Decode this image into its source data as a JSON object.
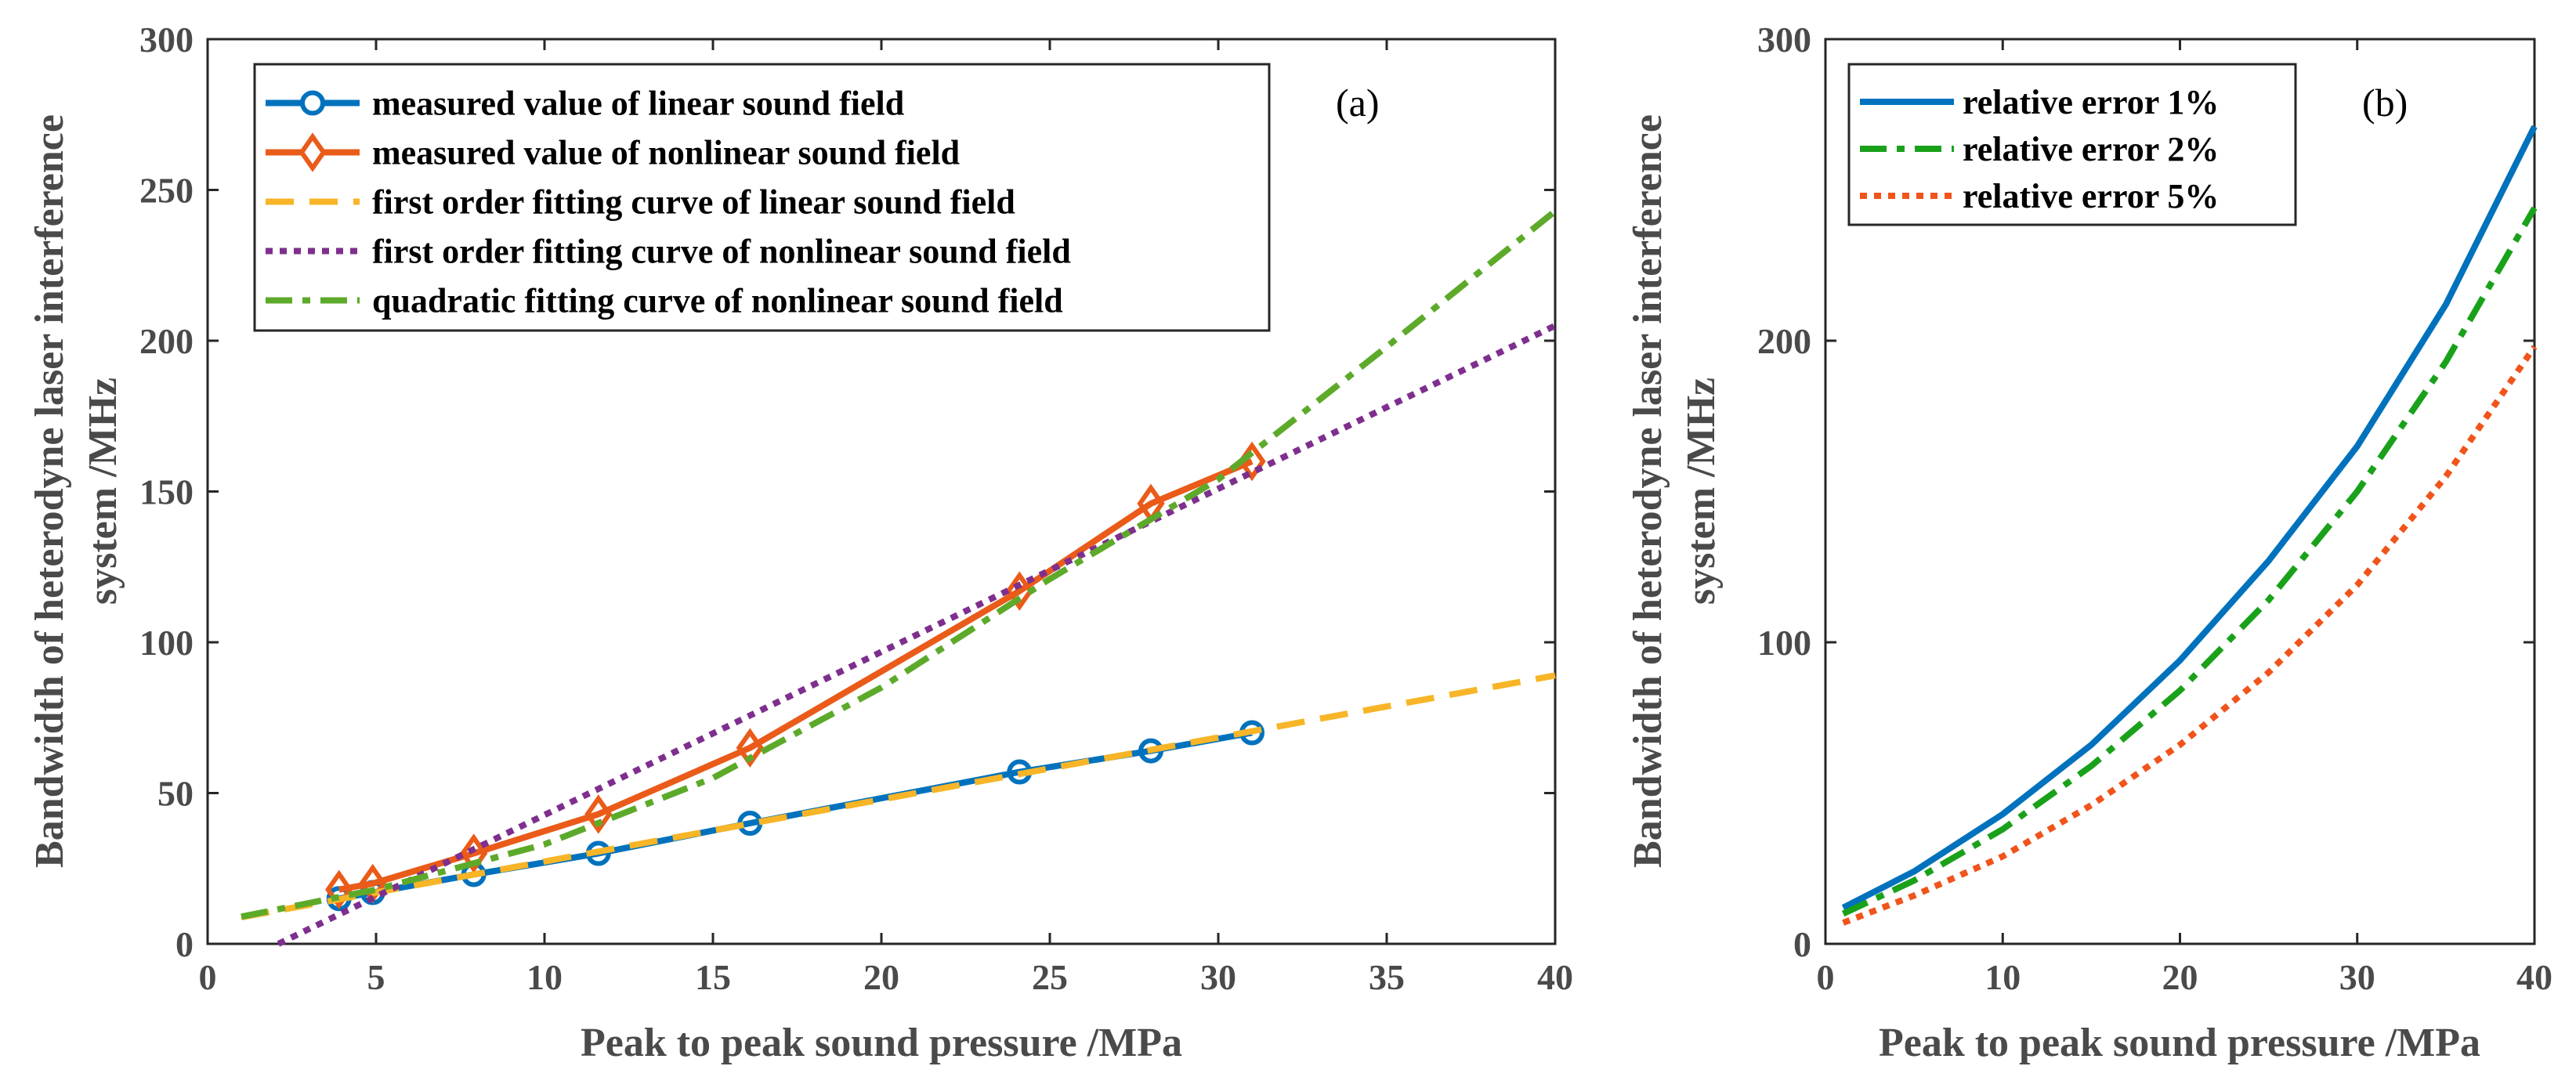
{
  "chart_data": [
    {
      "type": "line",
      "panel_label": "(a)",
      "xlabel": "Peak to peak sound pressure /MPa",
      "ylabel_line1": "Bandwidth of heterodyne laser interference",
      "ylabel_line2": "system /MHz",
      "xlim": [
        0,
        40
      ],
      "ylim": [
        0,
        300
      ],
      "xticks": [
        "0",
        "5",
        "10",
        "15",
        "20",
        "25",
        "30",
        "35",
        "40"
      ],
      "yticks": [
        "0",
        "50",
        "100",
        "150",
        "200",
        "250",
        "300"
      ],
      "legend_position": "top-left",
      "colors": {
        "linear": "#0072BD",
        "nonlinear": "#EA5B19",
        "fit_linear": "#F7B527",
        "fit_nonlinear_1st": "#7E2F8E",
        "fit_quadratic": "#5DAA2A"
      },
      "series": [
        {
          "name": "measured value of linear sound field",
          "style": "solid-circle",
          "x": [
            3.9,
            4.9,
            7.9,
            11.6,
            16.1,
            24.1,
            28.0,
            31.0
          ],
          "y": [
            15,
            17,
            23,
            30,
            40,
            57,
            64,
            70
          ]
        },
        {
          "name": "measured value of nonlinear sound field",
          "style": "solid-diamond",
          "x": [
            3.9,
            4.9,
            7.9,
            11.6,
            16.1,
            24.1,
            28.0,
            31.0
          ],
          "y": [
            18,
            20,
            30,
            43,
            65,
            117,
            146,
            160
          ]
        },
        {
          "name": "first order fitting curve of linear sound field",
          "style": "dashed",
          "x": [
            1,
            40
          ],
          "y": [
            8.8,
            89
          ]
        },
        {
          "name": "first order fitting curve of nonlinear sound field",
          "style": "dotted",
          "x": [
            2.1,
            40
          ],
          "y": [
            0,
            205
          ]
        },
        {
          "name": "quadratic fitting curve of nonlinear sound field",
          "style": "dashdot",
          "x": [
            1,
            5,
            10,
            15,
            20,
            25,
            30,
            35,
            40
          ],
          "y": [
            9,
            18,
            33,
            55,
            85,
            121,
            154,
            198,
            243
          ]
        }
      ]
    },
    {
      "type": "line",
      "panel_label": "(b)",
      "xlabel": "Peak to peak sound pressure /MPa",
      "ylabel_line1": "Bandwidth of heterodyne laser interference",
      "ylabel_line2": "system /MHz",
      "xlim": [
        0,
        40
      ],
      "ylim": [
        0,
        300
      ],
      "xticks": [
        "0",
        "10",
        "20",
        "30",
        "40"
      ],
      "yticks": [
        "0",
        "100",
        "200",
        "300"
      ],
      "legend_position": "top-left",
      "colors": {
        "e1": "#0072BD",
        "e2": "#1AA11A",
        "e5": "#F0541B"
      },
      "series": [
        {
          "name": "relative error 1%",
          "style": "solid",
          "x": [
            1,
            5,
            10,
            15,
            20,
            25,
            30,
            35,
            40
          ],
          "y": [
            12,
            24,
            43,
            66,
            94,
            127,
            165,
            212,
            271
          ]
        },
        {
          "name": "relative error 2%",
          "style": "dashdot",
          "x": [
            1,
            5,
            10,
            15,
            20,
            25,
            30,
            35,
            40
          ],
          "y": [
            10,
            21,
            38,
            59,
            84,
            114,
            150,
            193,
            244
          ]
        },
        {
          "name": "relative error 5%",
          "style": "dotted",
          "x": [
            1,
            5,
            10,
            15,
            20,
            25,
            30,
            35,
            40
          ],
          "y": [
            7,
            16,
            29,
            46,
            66,
            90,
            119,
            155,
            198
          ]
        }
      ]
    }
  ]
}
